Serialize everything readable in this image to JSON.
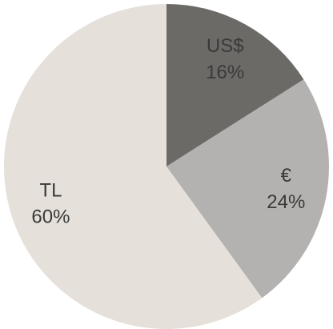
{
  "chart_data": {
    "type": "pie",
    "categories": [
      "US$",
      "€",
      "TL"
    ],
    "values": [
      16,
      24,
      60
    ],
    "value_labels": [
      "16%",
      "24%",
      "60%"
    ],
    "colors": [
      "#6b6a66",
      "#b3b2b0",
      "#e5e0d9"
    ]
  }
}
